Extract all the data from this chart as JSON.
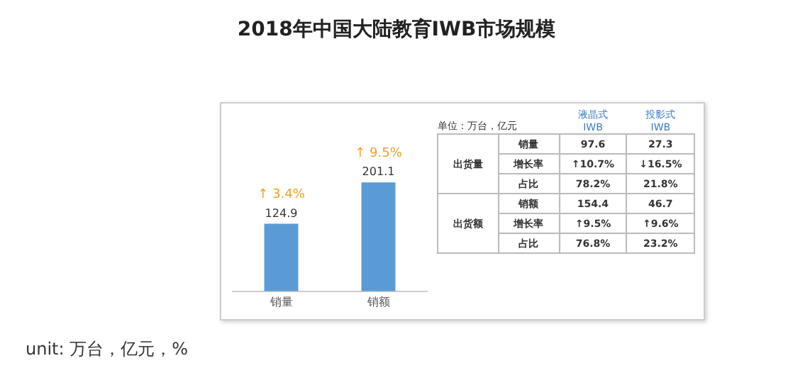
{
  "chart_data": [
    {
      "type": "bar",
      "title": "2018年中国大陆教育IWB市场规模",
      "categories": [
        "销量",
        "销额"
      ],
      "values": [
        124.9,
        201.1
      ],
      "color": "#5b9bd5",
      "data_labels": true,
      "grid": false,
      "legend": false,
      "tick_labels": "x",
      "annotations": [
        {
          "text": "↑ 3.4%",
          "x": "销量",
          "y": 124.9
        },
        {
          "text": "↑ 9.5%",
          "x": "销额",
          "y": 201.1
        },
        "unit: 万台，亿元，%"
      ]
    },
    {
      "type": "other",
      "annotations": [
        "单位：万台，亿元",
        "液晶式\nIWB",
        "投影式\nIWB",
        "出货量",
        "销量",
        "97.6",
        "27.3",
        "增长率",
        "↑10.7%",
        "↓16.5%",
        "占比",
        "78.2%",
        "21.8%",
        "出货额",
        "销额",
        "154.4",
        "46.7",
        "增长率",
        "↑9.5%",
        "↑9.6%",
        "占比",
        "76.8%",
        "23.2%"
      ]
    }
  ]
}
